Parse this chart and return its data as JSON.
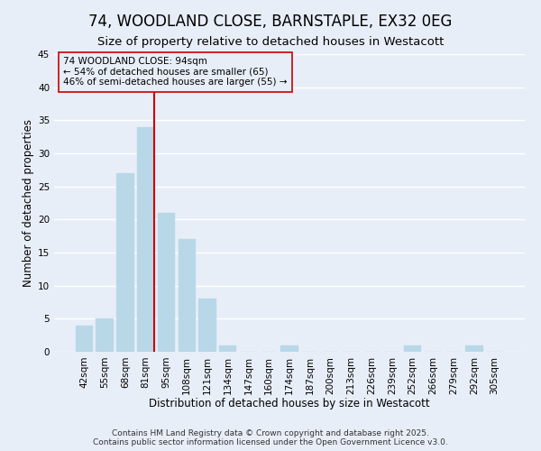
{
  "title": "74, WOODLAND CLOSE, BARNSTAPLE, EX32 0EG",
  "subtitle": "Size of property relative to detached houses in Westacott",
  "xlabel": "Distribution of detached houses by size in Westacott",
  "ylabel": "Number of detached properties",
  "bin_labels": [
    "42sqm",
    "55sqm",
    "68sqm",
    "81sqm",
    "95sqm",
    "108sqm",
    "121sqm",
    "134sqm",
    "147sqm",
    "160sqm",
    "174sqm",
    "187sqm",
    "200sqm",
    "213sqm",
    "226sqm",
    "239sqm",
    "252sqm",
    "266sqm",
    "279sqm",
    "292sqm",
    "305sqm"
  ],
  "bar_values": [
    4,
    5,
    27,
    34,
    21,
    17,
    8,
    1,
    0,
    0,
    1,
    0,
    0,
    0,
    0,
    0,
    1,
    0,
    0,
    1,
    0
  ],
  "bar_color": "#b8d8e8",
  "bar_edge_color": "#b8d8e8",
  "highlight_line_color": "#cc0000",
  "ylim": [
    0,
    45
  ],
  "yticks": [
    0,
    5,
    10,
    15,
    20,
    25,
    30,
    35,
    40,
    45
  ],
  "annotation_text_line1": "74 WOODLAND CLOSE: 94sqm",
  "annotation_text_line2": "← 54% of detached houses are smaller (65)",
  "annotation_text_line3": "46% of semi-detached houses are larger (55) →",
  "footer_line1": "Contains HM Land Registry data © Crown copyright and database right 2025.",
  "footer_line2": "Contains public sector information licensed under the Open Government Licence v3.0.",
  "background_color": "#e8eef8",
  "grid_color": "#ffffff",
  "title_fontsize": 12,
  "subtitle_fontsize": 9.5,
  "axis_label_fontsize": 8.5,
  "tick_fontsize": 7.5,
  "footer_fontsize": 6.5
}
